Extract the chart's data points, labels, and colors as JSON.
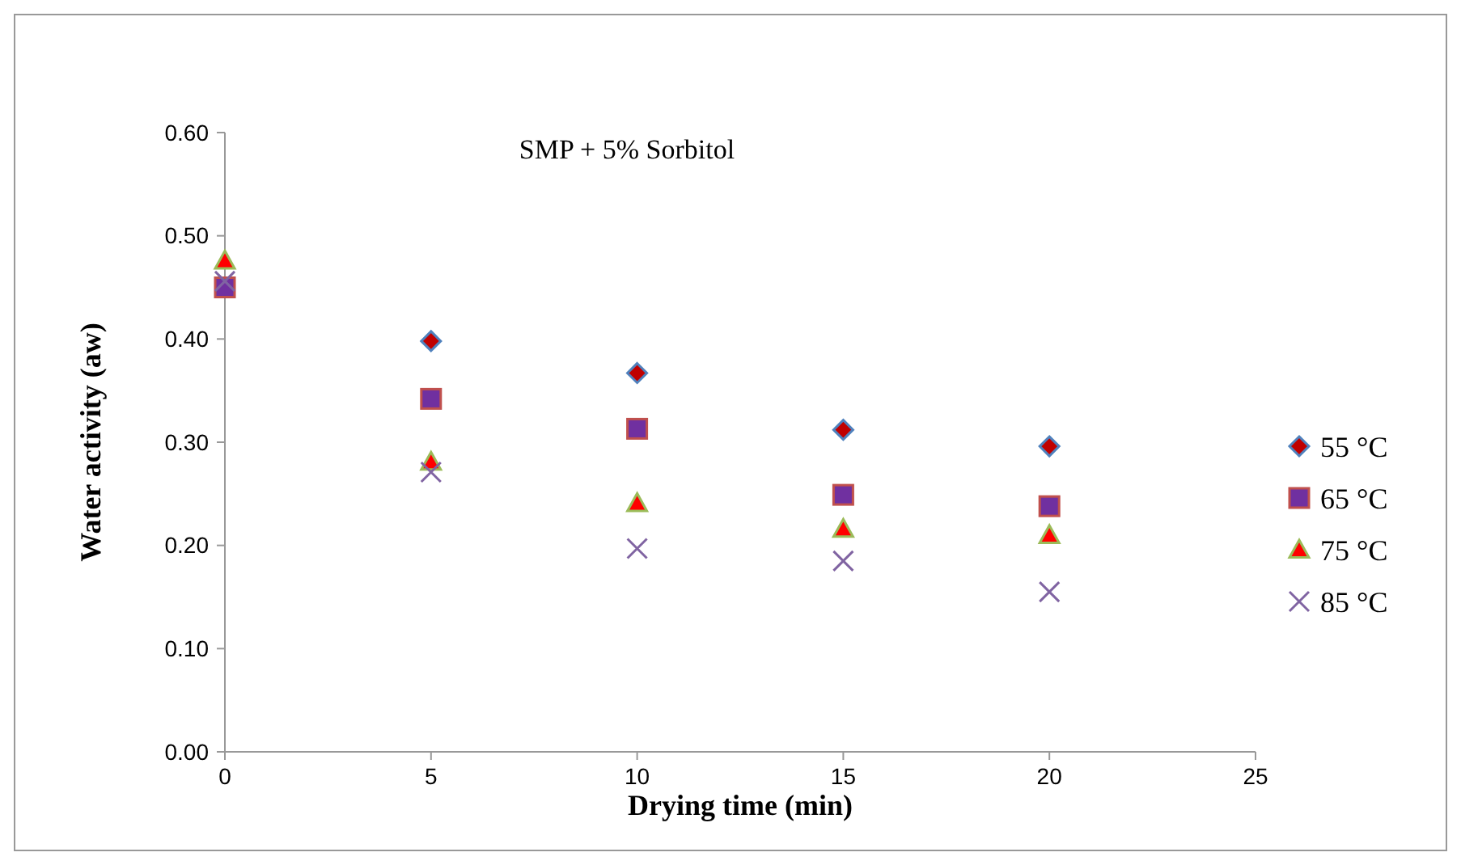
{
  "chart_data": {
    "type": "scatter",
    "title": "SMP + 5% Sorbitol",
    "xlabel": "Drying time (min)",
    "ylabel": "Water activity (aw)",
    "x": [
      0,
      5,
      10,
      15,
      20
    ],
    "series": [
      {
        "name": "55 °C",
        "color": "#c00000",
        "marker": "diamond",
        "values": [
          null,
          0.398,
          0.367,
          0.312,
          0.296
        ]
      },
      {
        "name": "65 °C",
        "color": "#7030a0",
        "marker": "square",
        "values": [
          0.45,
          0.342,
          0.313,
          0.249,
          0.238
        ]
      },
      {
        "name": "75 °C",
        "color": "#ff0000",
        "marker": "triangle",
        "values": [
          0.476,
          0.281,
          0.241,
          0.216,
          0.21
        ]
      },
      {
        "name": "85 °C",
        "color": "#8064a2",
        "marker": "cross",
        "values": [
          0.456,
          0.271,
          0.197,
          0.185,
          0.155
        ]
      }
    ],
    "xlim": [
      0,
      25
    ],
    "xticks": [
      0,
      5,
      10,
      15,
      20,
      25
    ],
    "ylim": [
      0,
      0.6
    ],
    "yticks": [
      {
        "value": 0,
        "label": "0.00"
      },
      {
        "value": 0.1,
        "label": "0.10"
      },
      {
        "value": 0.2,
        "label": "0.20"
      },
      {
        "value": 0.3,
        "label": "0.30"
      },
      {
        "value": 0.4,
        "label": "0.40"
      },
      {
        "value": 0.5,
        "label": "0.50"
      },
      {
        "value": 0.6,
        "label": "0.60"
      }
    ],
    "grid": false,
    "legend": "right"
  }
}
